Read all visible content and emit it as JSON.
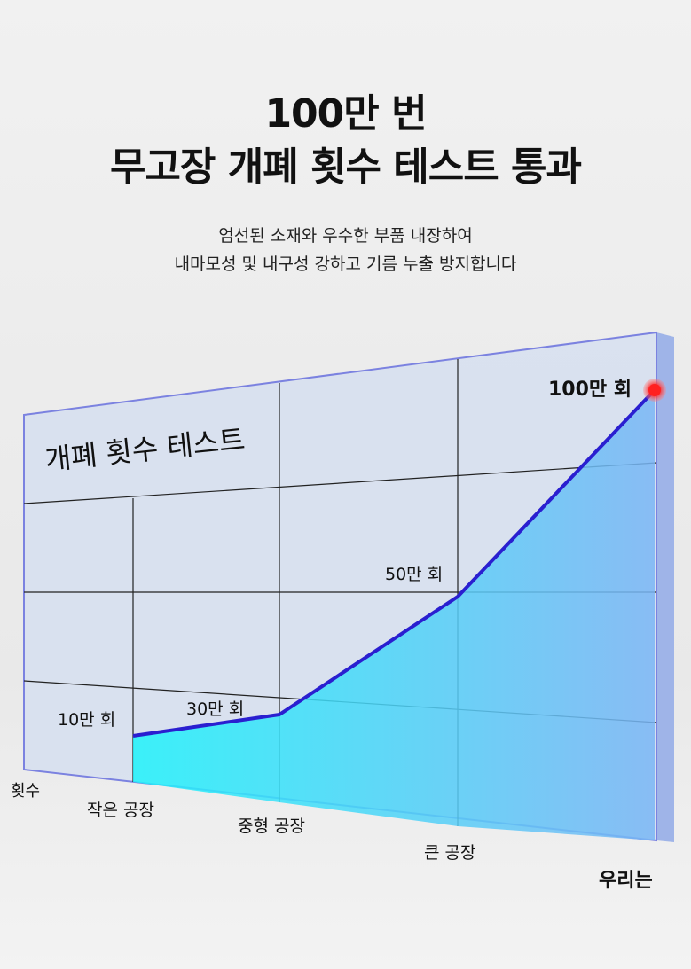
{
  "header": {
    "title_line1": "100만 번",
    "title_line2": "무고장 개폐 횟수 테스트 통과",
    "subtitle_line1": "엄선된 소재와 우수한 부품 내장하여",
    "subtitle_line2": "내마모성 및 내구성 강하고 기름 누출 방지합니다"
  },
  "chart_data": {
    "type": "area",
    "title": "개폐 횟수 테스트",
    "ylabel": "횟수",
    "categories": [
      "작은 공장",
      "중형 공장",
      "큰 공장",
      "우리는"
    ],
    "values": [
      100000,
      300000,
      500000,
      1000000
    ],
    "data_labels": [
      "10만 회",
      "30만 회",
      "50만 회",
      "100만 회"
    ],
    "grid": true,
    "colors": {
      "line": "#2a1fd0",
      "fill_start": "#1ff3fb",
      "fill_end": "#7ab6f5",
      "highlight_point": "#ff2020",
      "panel": "#d6dff0",
      "panel_border": "#7b82e0"
    }
  }
}
